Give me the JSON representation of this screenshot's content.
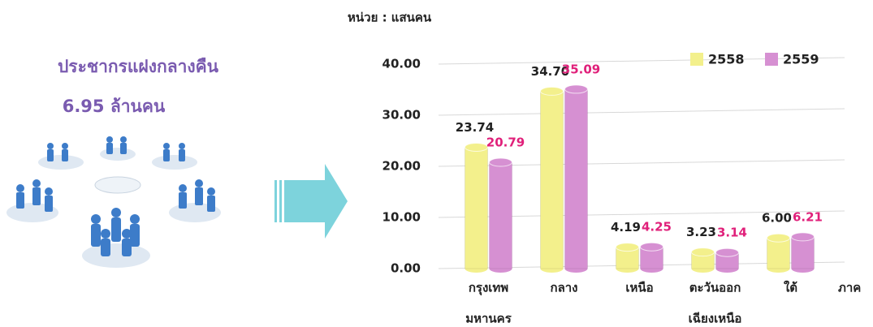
{
  "infographic": {
    "title": "ประชากรแฝงกลางคืน",
    "subtitle": "6.95 ล้านคน"
  },
  "chart_data": {
    "type": "bar",
    "unit_label": "หน่วย : แสนคน",
    "x_label": "ภาค",
    "categories": [
      [
        "กรุงเทพ",
        "มหานคร"
      ],
      [
        "กลาง"
      ],
      [
        "เหนือ"
      ],
      [
        "ตะวันออก",
        "เฉียงเหนือ"
      ],
      [
        "ใต้"
      ]
    ],
    "series": [
      {
        "name": "2558",
        "color": "#f3f08c",
        "label_color": "#222222",
        "values": [
          23.74,
          34.7,
          4.19,
          3.23,
          6.0
        ],
        "value_labels": [
          "23.74",
          "34.70",
          "4.19",
          "3.23",
          "6.00"
        ]
      },
      {
        "name": "2559",
        "color": "#d690d2",
        "label_color": "#e0207a",
        "values": [
          20.79,
          35.09,
          4.25,
          3.14,
          6.21
        ]
      }
    ],
    "ylim": [
      0,
      40
    ],
    "yticks": [
      {
        "value": 0,
        "label": "0.00"
      },
      {
        "value": 10,
        "label": "10.00"
      },
      {
        "value": 20,
        "label": "20.00"
      },
      {
        "value": 30,
        "label": "30.00"
      },
      {
        "value": 40,
        "label": "40.00"
      }
    ],
    "grid": true
  }
}
